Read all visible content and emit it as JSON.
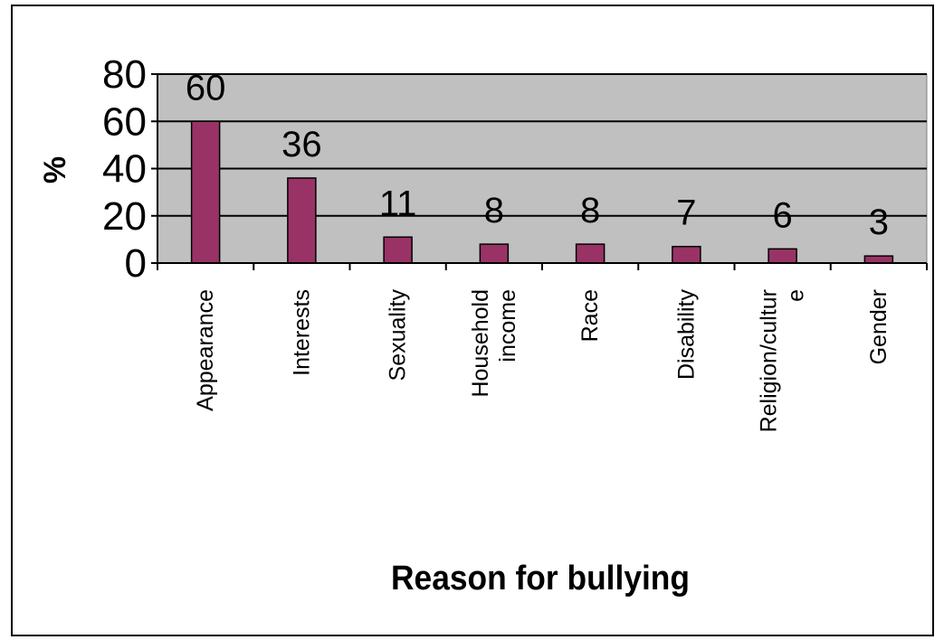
{
  "chart_data": {
    "type": "bar",
    "categories": [
      [
        "Appearance"
      ],
      [
        "Interests"
      ],
      [
        "Sexuality"
      ],
      [
        "Household",
        "income"
      ],
      [
        "Race"
      ],
      [
        "Disability"
      ],
      [
        "Religion/cultur",
        "e"
      ],
      [
        "Gender"
      ]
    ],
    "values": [
      60,
      36,
      11,
      8,
      8,
      7,
      6,
      3
    ],
    "data_labels": [
      "60",
      "36",
      "11",
      "8",
      "8",
      "7",
      "6",
      "3"
    ],
    "xlabel": "Reason for bullying",
    "ylabel": "%",
    "ylim": [
      0,
      80
    ],
    "yticks": [
      0,
      20,
      40,
      60,
      80
    ],
    "ytick_labels": [
      "0",
      "20",
      "40",
      "60",
      "80"
    ],
    "grid": true,
    "colors": {
      "plot_background": "#c0c0c0",
      "bar_fill": "#993366",
      "bar_stroke": "#000000",
      "gridline": "#000000"
    }
  }
}
